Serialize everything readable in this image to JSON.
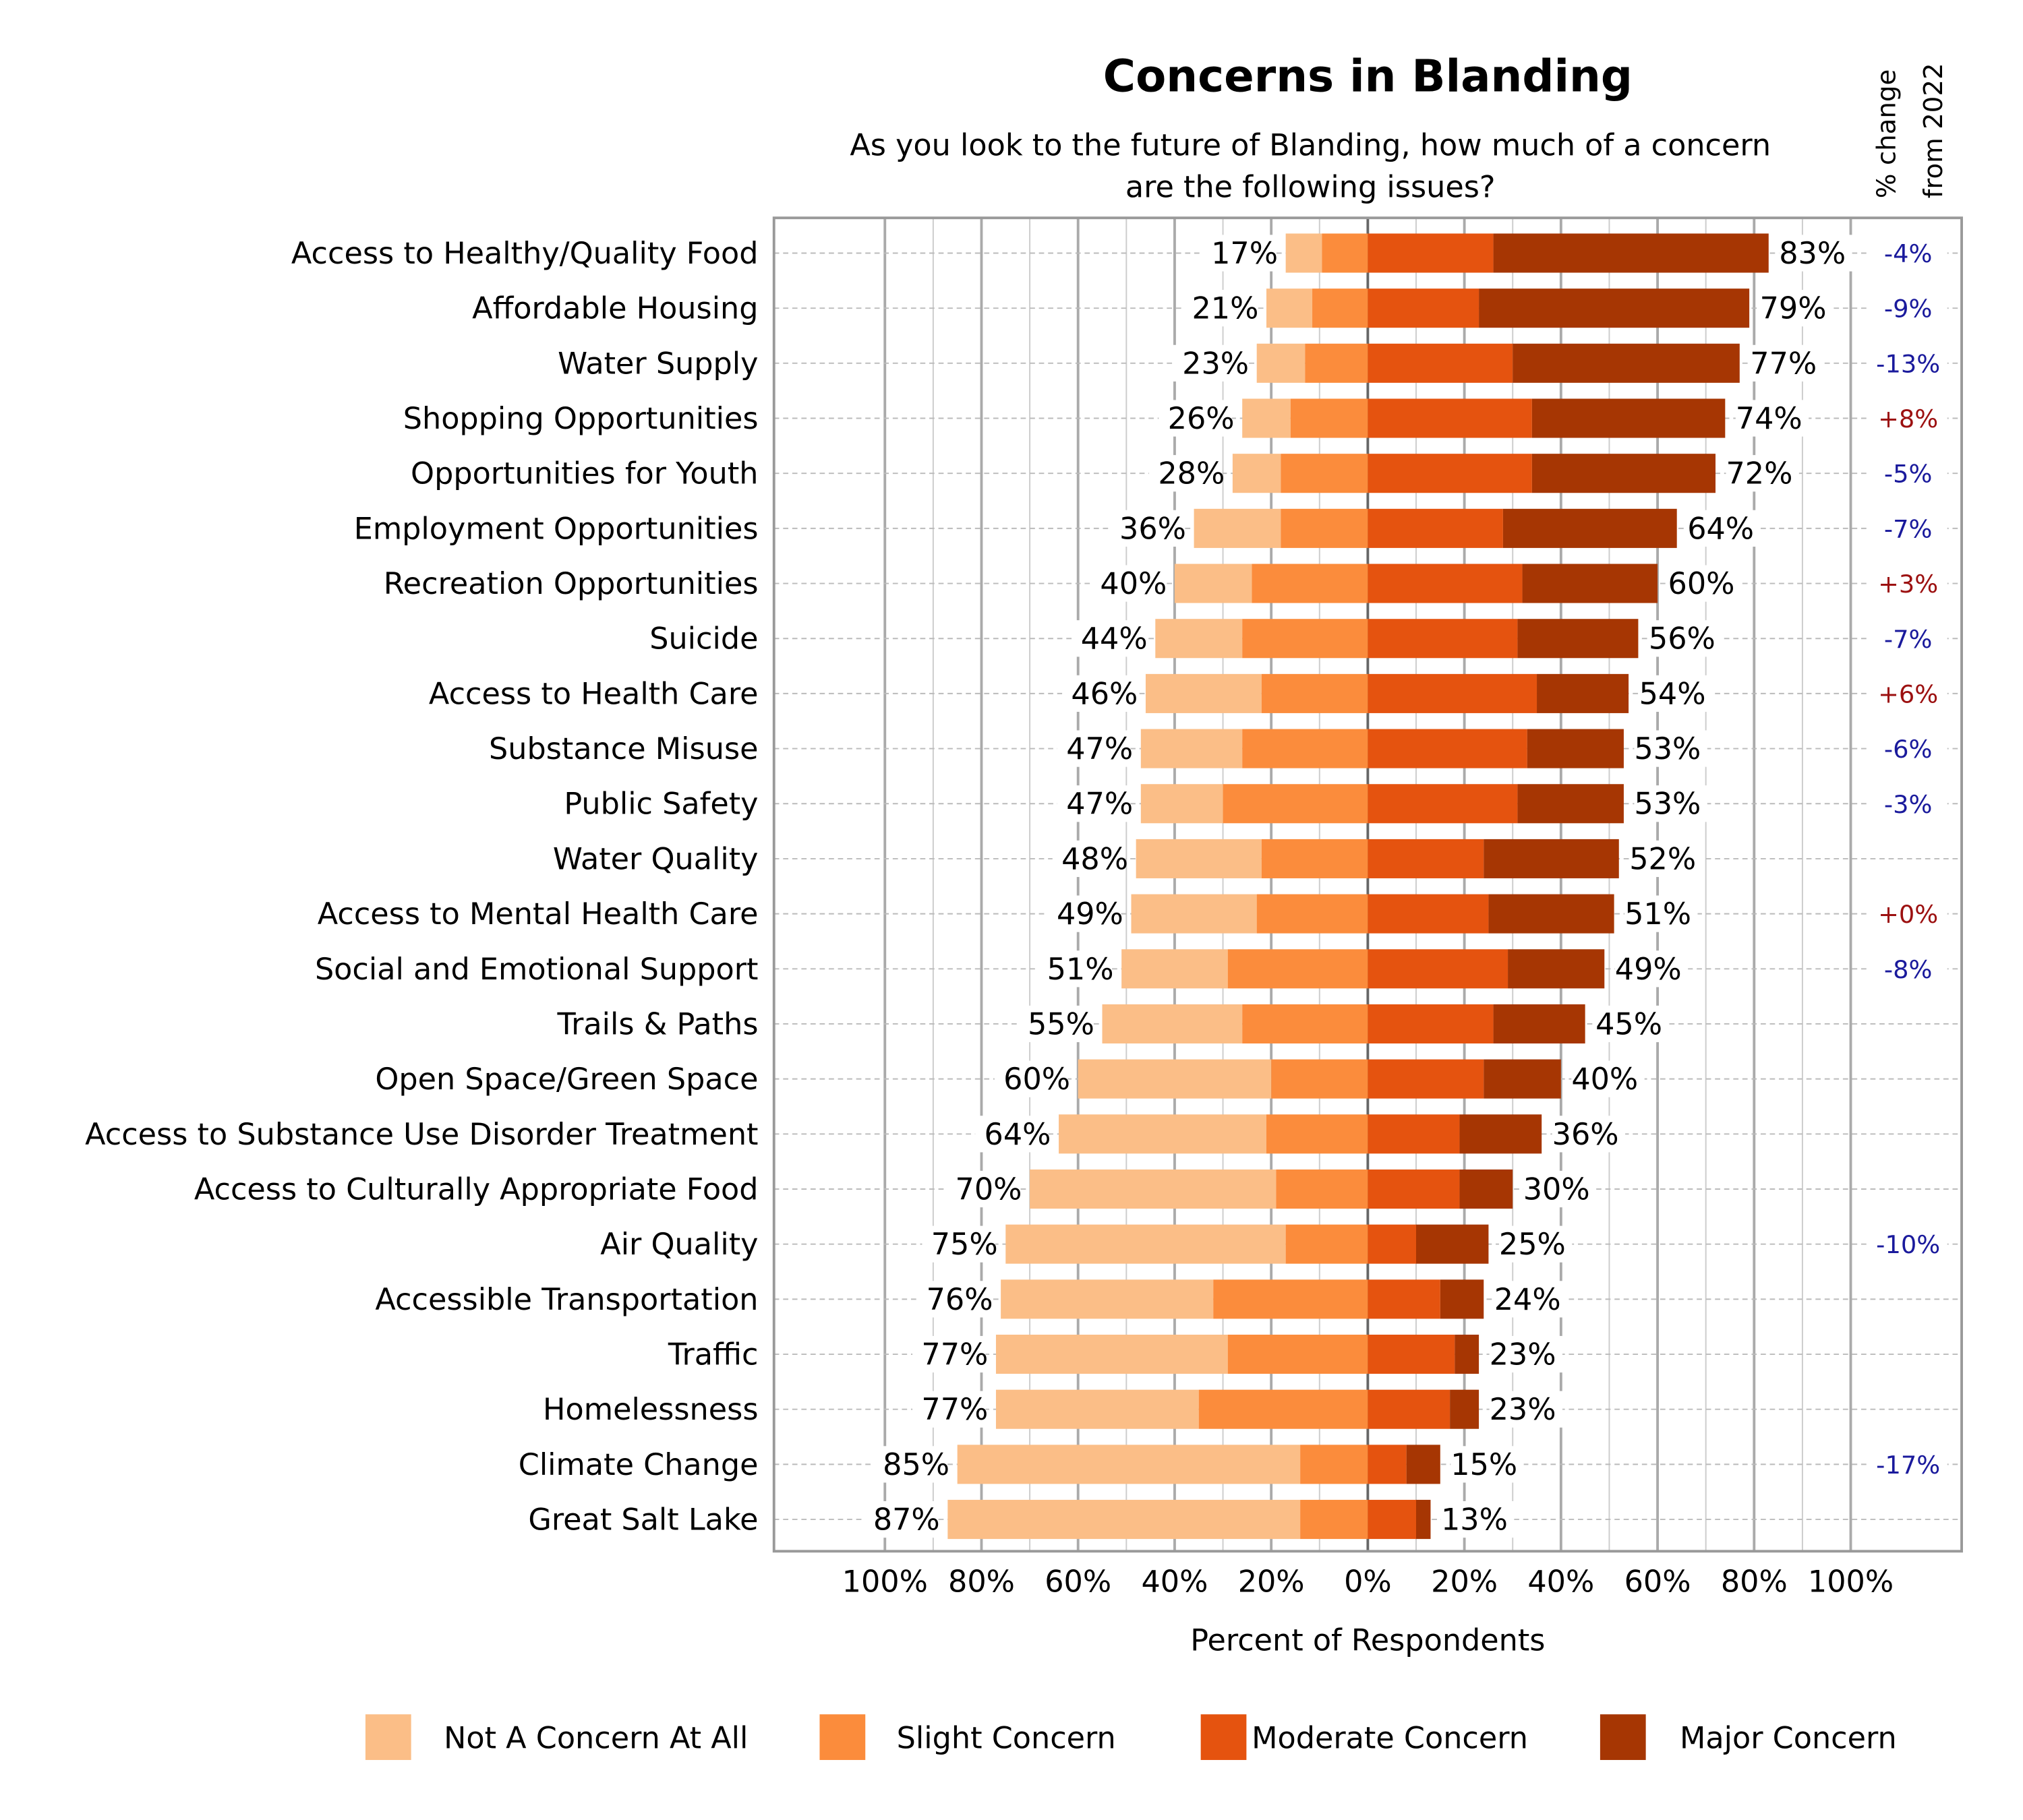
{
  "chart_data": {
    "type": "bar",
    "subtype": "diverging-stacked-horizontal",
    "title": "Concerns in Blanding",
    "subtitle_lines": [
      "As you look to the future of Blanding, how much of a concern",
      "are the following issues?"
    ],
    "xlabel": "Percent of Respondents",
    "change_header_lines": [
      "% change",
      "from 2022"
    ],
    "x_ticks": [
      "100%",
      "80%",
      "60%",
      "40%",
      "20%",
      "0%",
      "20%",
      "40%",
      "60%",
      "80%",
      "100%"
    ],
    "xlim": [
      -100,
      100
    ],
    "legend_position": "bottom",
    "series": [
      {
        "name": "Not A Concern At All",
        "color": "#fbbe87",
        "side": "left"
      },
      {
        "name": "Slight Concern",
        "color": "#fb8c3c",
        "side": "left"
      },
      {
        "name": "Moderate Concern",
        "color": "#e5530f",
        "side": "right"
      },
      {
        "name": "Major Concern",
        "color": "#a63603",
        "side": "right"
      }
    ],
    "change_colors": {
      "negative": "#1a1a9c",
      "positive": "#9c1010"
    },
    "categories": [
      {
        "label": "Access to Healthy/Quality Food",
        "values": [
          7.5,
          9.5,
          26,
          57
        ],
        "left_total": "17%",
        "right_total": "83%",
        "change": "-4%"
      },
      {
        "label": "Affordable Housing",
        "values": [
          9.5,
          11.5,
          23,
          56
        ],
        "left_total": "21%",
        "right_total": "79%",
        "change": "-9%"
      },
      {
        "label": "Water Supply",
        "values": [
          10,
          13,
          30,
          47
        ],
        "left_total": "23%",
        "right_total": "77%",
        "change": "-13%"
      },
      {
        "label": "Shopping Opportunities",
        "values": [
          10,
          16,
          34,
          40
        ],
        "left_total": "26%",
        "right_total": "74%",
        "change": "+8%"
      },
      {
        "label": "Opportunities for Youth",
        "values": [
          10,
          18,
          34,
          38
        ],
        "left_total": "28%",
        "right_total": "72%",
        "change": "-5%"
      },
      {
        "label": "Employment Opportunities",
        "values": [
          18,
          18,
          28,
          36
        ],
        "left_total": "36%",
        "right_total": "64%",
        "change": "-7%"
      },
      {
        "label": "Recreation Opportunities",
        "values": [
          16,
          24,
          32,
          28
        ],
        "left_total": "40%",
        "right_total": "60%",
        "change": "+3%"
      },
      {
        "label": "Suicide",
        "values": [
          18,
          26,
          31,
          25
        ],
        "left_total": "44%",
        "right_total": "56%",
        "change": "-7%"
      },
      {
        "label": "Access to Health Care",
        "values": [
          24,
          22,
          35,
          19
        ],
        "left_total": "46%",
        "right_total": "54%",
        "change": "+6%"
      },
      {
        "label": "Substance Misuse",
        "values": [
          21,
          26,
          33,
          20
        ],
        "left_total": "47%",
        "right_total": "53%",
        "change": "-6%"
      },
      {
        "label": "Public Safety",
        "values": [
          17,
          30,
          31,
          22
        ],
        "left_total": "47%",
        "right_total": "53%",
        "change": "-3%"
      },
      {
        "label": "Water Quality",
        "values": [
          26,
          22,
          24,
          28
        ],
        "left_total": "48%",
        "right_total": "52%",
        "change": ""
      },
      {
        "label": "Access to Mental Health Care",
        "values": [
          26,
          23,
          25,
          26
        ],
        "left_total": "49%",
        "right_total": "51%",
        "change": "+0%"
      },
      {
        "label": "Social and Emotional Support",
        "values": [
          22,
          29,
          29,
          20
        ],
        "left_total": "51%",
        "right_total": "49%",
        "change": "-8%"
      },
      {
        "label": "Trails & Paths",
        "values": [
          29,
          26,
          26,
          19
        ],
        "left_total": "55%",
        "right_total": "45%",
        "change": ""
      },
      {
        "label": "Open Space/Green Space",
        "values": [
          40,
          20,
          24,
          16
        ],
        "left_total": "60%",
        "right_total": "40%",
        "change": ""
      },
      {
        "label": "Access to Substance Use Disorder Treatment",
        "values": [
          43,
          21,
          19,
          17
        ],
        "left_total": "64%",
        "right_total": "36%",
        "change": ""
      },
      {
        "label": "Access to Culturally Appropriate Food",
        "values": [
          51,
          19,
          19,
          11
        ],
        "left_total": "70%",
        "right_total": "30%",
        "change": ""
      },
      {
        "label": "Air Quality",
        "values": [
          58,
          17,
          10,
          15
        ],
        "left_total": "75%",
        "right_total": "25%",
        "change": "-10%"
      },
      {
        "label": "Accessible Transportation",
        "values": [
          44,
          32,
          15,
          9
        ],
        "left_total": "76%",
        "right_total": "24%",
        "change": ""
      },
      {
        "label": "Traffic",
        "values": [
          48,
          29,
          18,
          5
        ],
        "left_total": "77%",
        "right_total": "23%",
        "change": ""
      },
      {
        "label": "Homelessness",
        "values": [
          42,
          35,
          17,
          6
        ],
        "left_total": "77%",
        "right_total": "23%",
        "change": ""
      },
      {
        "label": "Climate Change",
        "values": [
          71,
          14,
          8,
          7
        ],
        "left_total": "85%",
        "right_total": "15%",
        "change": "-17%"
      },
      {
        "label": "Great Salt Lake",
        "values": [
          73,
          14,
          10,
          3
        ],
        "left_total": "87%",
        "right_total": "13%",
        "change": ""
      }
    ]
  }
}
